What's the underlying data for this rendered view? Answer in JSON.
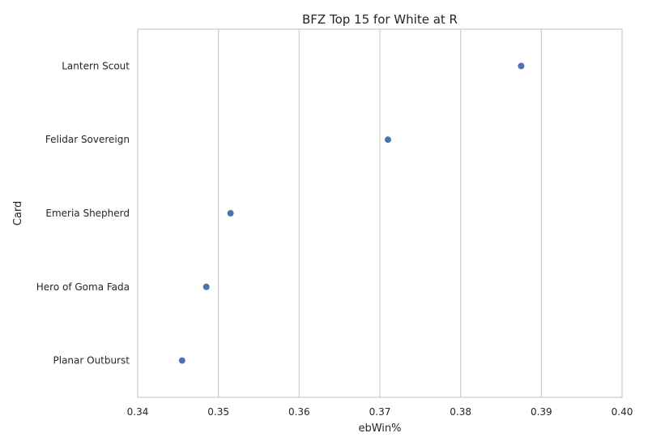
{
  "chart_data": {
    "type": "scatter",
    "title": "BFZ Top 15 for White at R",
    "xlabel": "ebWin%",
    "ylabel": "Card",
    "xlim": [
      0.34,
      0.4
    ],
    "xticks": [
      "0.34",
      "0.35",
      "0.36",
      "0.37",
      "0.38",
      "0.39",
      "0.40"
    ],
    "grid": "vertical",
    "color": "#4c72b0",
    "categories": [
      "Lantern Scout",
      "Felidar Sovereign",
      "Emeria Shepherd",
      "Hero of Goma Fada",
      "Planar Outburst"
    ],
    "values": [
      0.3875,
      0.371,
      0.3515,
      0.3485,
      0.3455
    ]
  }
}
